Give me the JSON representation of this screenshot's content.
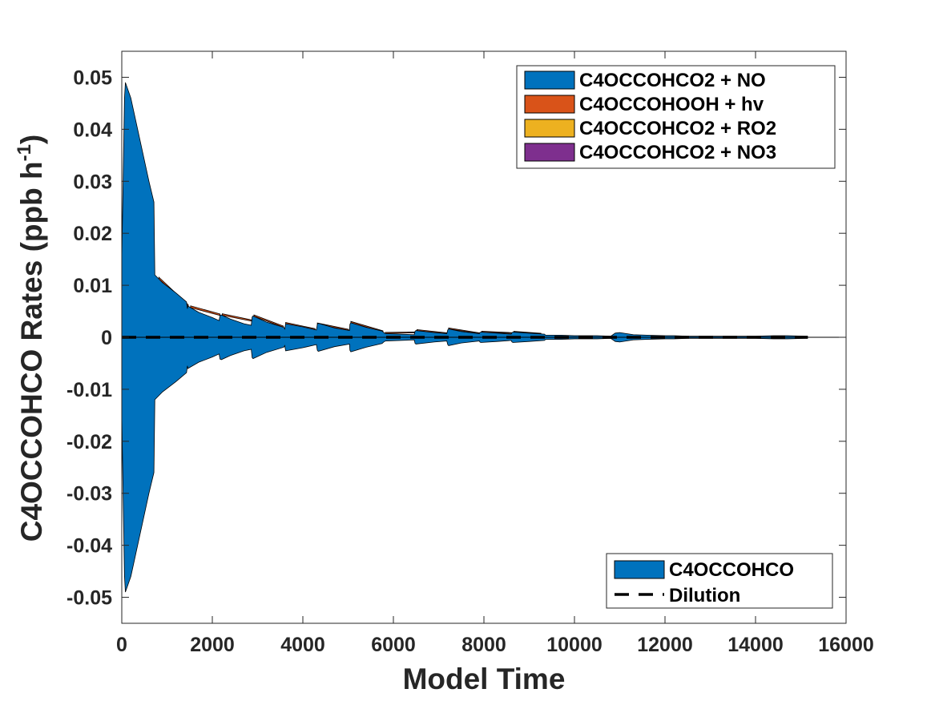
{
  "chart_data": {
    "type": "area",
    "xlabel": "Model Time",
    "ylabel": "C4OCCOHCO Rates (ppb h",
    "ylabel_sup": "-1",
    "ylabel_close": ")",
    "xlim": [
      0,
      16000
    ],
    "ylim": [
      -0.055,
      0.055
    ],
    "xticks": [
      0,
      2000,
      4000,
      6000,
      8000,
      10000,
      12000,
      14000,
      16000
    ],
    "xtick_labels": [
      "0",
      "2000",
      "4000",
      "6000",
      "8000",
      "10000",
      "12000",
      "14000",
      "16000"
    ],
    "yticks": [
      0.05,
      0.04,
      0.03,
      0.02,
      0.01,
      0,
      -0.01,
      -0.02,
      -0.03,
      -0.04,
      -0.05
    ],
    "ytick_labels": [
      "0.05",
      "0.04",
      "0.03",
      "0.02",
      "0.01",
      "0",
      "-0.01",
      "-0.02",
      "-0.03",
      "-0.04",
      "-0.05"
    ],
    "grid": false,
    "production_series": [
      {
        "name": "C4OCCOHCO2 + NO",
        "color": "#0072BD"
      },
      {
        "name": "C4OCCOHOOH + hv",
        "color": "#D95319"
      },
      {
        "name": "C4OCCOHCO2 + RO2",
        "color": "#EDB120"
      },
      {
        "name": "C4OCCOHCO2 + NO3",
        "color": "#7E2F8E"
      }
    ],
    "loss_series": [
      {
        "name": "C4OCCOHCO",
        "color": "#0072BD"
      },
      {
        "name": "Dilution",
        "color": "#000000",
        "style": "dashed"
      }
    ],
    "legend_production_position": "top-right",
    "legend_loss_position": "bottom-right",
    "envelope_x": [
      0,
      60,
      80,
      200,
      400,
      600,
      710,
      730,
      900,
      1200,
      1430,
      1450,
      1460,
      1700,
      2000,
      2150,
      2170,
      2200,
      2400,
      2700,
      2860,
      2880,
      2900,
      3200,
      3580,
      3600,
      3620,
      4000,
      4300,
      4320,
      4340,
      4700,
      5030,
      5040,
      5060,
      5400,
      5750,
      5800,
      5840,
      6200,
      6460,
      6480,
      6500,
      6900,
      7180,
      7200,
      7220,
      7500,
      7900,
      7910,
      7930,
      8300,
      8600,
      8620,
      8640,
      9000,
      9340,
      9360,
      9380,
      9700,
      10000,
      10500,
      10800,
      10900,
      11000,
      11300,
      11600,
      12000,
      12200,
      12500,
      13000,
      13500,
      13700,
      14000,
      14400,
      14700,
      15100,
      15150
    ],
    "envelope_top": [
      0.015,
      0.046,
      0.049,
      0.046,
      0.038,
      0.03,
      0.026,
      0.012,
      0.0105,
      0.0085,
      0.0068,
      0.0055,
      0.006,
      0.0048,
      0.0038,
      0.0032,
      0.0042,
      0.0043,
      0.0035,
      0.0026,
      0.0023,
      0.0039,
      0.0041,
      0.0029,
      0.0019,
      0.0016,
      0.0026,
      0.002,
      0.0014,
      0.0025,
      0.0027,
      0.0018,
      0.0013,
      0.0025,
      0.0028,
      0.0019,
      0.0012,
      0.0008,
      0.0007,
      0.0006,
      0.0005,
      0.0012,
      0.0013,
      0.0009,
      0.0007,
      0.0014,
      0.0016,
      0.0011,
      0.0007,
      0.0009,
      0.001,
      0.0008,
      0.0006,
      0.0009,
      0.001,
      0.0008,
      0.0006,
      0.0004,
      0.0004,
      0.0004,
      0.0003,
      0.0003,
      0.0002,
      0.0008,
      0.0009,
      0.0005,
      0.0004,
      0.0003,
      0.0003,
      0.0002,
      0.0002,
      0.0002,
      0.0002,
      0.0002,
      0.0003,
      0.0003,
      0.0002,
      0.0002
    ],
    "envelope_bottom": [
      -0.015,
      -0.046,
      -0.049,
      -0.046,
      -0.038,
      -0.03,
      -0.026,
      -0.012,
      -0.0105,
      -0.0085,
      -0.0068,
      -0.0055,
      -0.006,
      -0.0048,
      -0.0038,
      -0.0032,
      -0.0042,
      -0.0043,
      -0.0035,
      -0.0026,
      -0.0023,
      -0.0039,
      -0.0041,
      -0.0029,
      -0.0019,
      -0.0016,
      -0.0026,
      -0.002,
      -0.0014,
      -0.0025,
      -0.0027,
      -0.0018,
      -0.0013,
      -0.0025,
      -0.0028,
      -0.0019,
      -0.0012,
      -0.0008,
      -0.0007,
      -0.0006,
      -0.0005,
      -0.0012,
      -0.0013,
      -0.0009,
      -0.0007,
      -0.0014,
      -0.0016,
      -0.0011,
      -0.0007,
      -0.0009,
      -0.001,
      -0.0008,
      -0.0006,
      -0.0009,
      -0.001,
      -0.0008,
      -0.0006,
      -0.0004,
      -0.0004,
      -0.0004,
      -0.0003,
      -0.0003,
      -0.0002,
      -0.0008,
      -0.0009,
      -0.0005,
      -0.0004,
      -0.0003,
      -0.0003,
      -0.0002,
      -0.0002,
      -0.0002,
      -0.0002,
      -0.0002,
      -0.0003,
      -0.0003,
      -0.0002,
      -0.0002
    ],
    "hv_band_x": [
      800,
      1500,
      2200,
      2900,
      3600,
      4300,
      5040,
      5800,
      6500,
      7200,
      7930,
      8640
    ],
    "hv_band_top_extra": [
      0.00035,
      0.00035,
      0.0003,
      0.00028,
      0.00025,
      0.00025,
      0.00025,
      0.0002,
      0.0002,
      0.0002,
      0.00018,
      0.00015
    ]
  }
}
